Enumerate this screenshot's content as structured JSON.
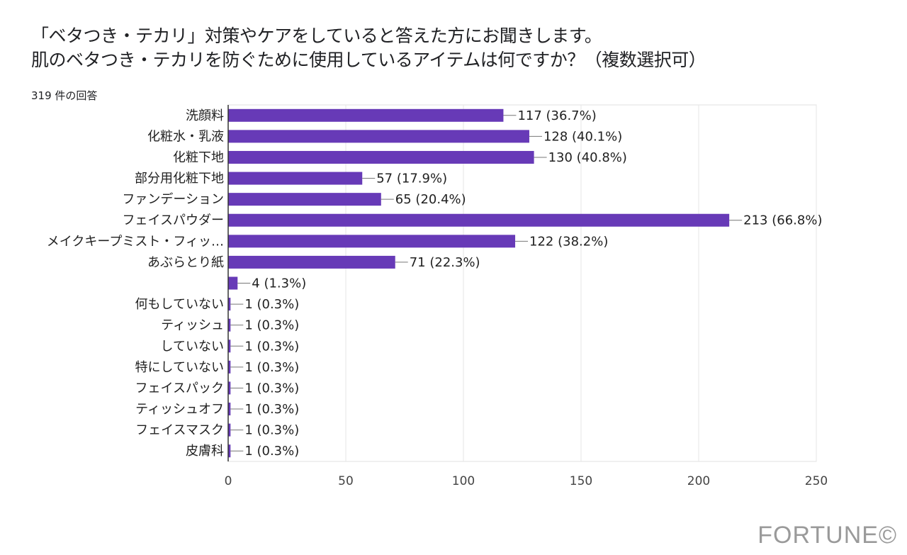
{
  "title_lines": [
    "「ベタつき・テカリ」対策やケアをしていると答えた方にお聞きします。",
    "肌のベタつき・テカリを防ぐために使用しているアイテムは何ですか？（複数選択可）"
  ],
  "response_count": "319 件の回答",
  "watermark": "FORTUNE©",
  "chart_data": {
    "type": "bar",
    "orientation": "horizontal",
    "title": "",
    "xlabel": "",
    "ylabel": "",
    "xlim": [
      0,
      250
    ],
    "xticks": [
      0,
      50,
      100,
      150,
      200,
      250
    ],
    "grid": true,
    "bar_color": "#673ab7",
    "categories": [
      "洗顔料",
      "化粧水・乳液",
      "化粧下地",
      "部分用化粧下地",
      "ファンデーション",
      "フェイスパウダー",
      "メイクキープミスト・フィッ…",
      "あぶらとり紙",
      "",
      "何もしていない",
      "ティッシュ",
      "していない",
      "特にしていない",
      "フェイスパック",
      "ティッシュオフ",
      "フェイスマスク",
      "皮膚科"
    ],
    "values": [
      117,
      128,
      130,
      57,
      65,
      213,
      122,
      71,
      4,
      1,
      1,
      1,
      1,
      1,
      1,
      1,
      1
    ],
    "data_labels": [
      "117 (36.7%)",
      "128 (40.1%)",
      "130 (40.8%)",
      "57 (17.9%)",
      "65 (20.4%)",
      "213 (66.8%)",
      "122 (38.2%)",
      "71 (22.3%)",
      "4 (1.3%)",
      "1 (0.3%)",
      "1 (0.3%)",
      "1 (0.3%)",
      "1 (0.3%)",
      "1 (0.3%)",
      "1 (0.3%)",
      "1 (0.3%)",
      "1 (0.3%)"
    ]
  }
}
